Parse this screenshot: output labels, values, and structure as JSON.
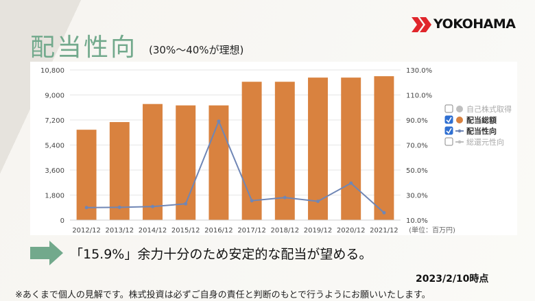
{
  "page": {
    "title": "配当性向",
    "subtitle": "(30%～40%が理想)",
    "logo_text": "YOKOHAMA",
    "conclusion": "「15.9%」余力十分のため安定的な配当が望める。",
    "date_stamp": "2023/2/10時点",
    "disclaimer": "※あくまで個人の見解です。株式投資は必ずご自身の責任と判断のもとで行うようにお願いいたします。",
    "colors": {
      "title": "#72a98c",
      "bar": "#d9823f",
      "line": "#6f86b5",
      "arrow": "#72a98c",
      "logo_red": "#e0262b"
    }
  },
  "chart_data": {
    "type": "bar",
    "categories": [
      "2012/12",
      "2013/12",
      "2014/12",
      "2015/12",
      "2016/12",
      "2017/12",
      "2018/12",
      "2019/12",
      "2020/12",
      "2021/12"
    ],
    "ylim_left": [
      0,
      10800
    ],
    "yticks_left": [
      "0",
      "1,800",
      "3,600",
      "5,400",
      "7,200",
      "9,000",
      "10,800"
    ],
    "ylim_right": [
      10.0,
      130.0
    ],
    "yticks_right": [
      "10.0%",
      "30.0%",
      "50.0%",
      "70.0%",
      "90.0%",
      "110.0%",
      "130.0%"
    ],
    "unit_label": "(単位：百万円)",
    "grid": true,
    "legend_position": "right",
    "series": [
      {
        "name": "配当総額",
        "kind": "bar",
        "axis": "left",
        "values": [
          6500,
          7050,
          8350,
          8250,
          8250,
          9950,
          9950,
          10250,
          10250,
          10350
        ]
      },
      {
        "name": "配当性向",
        "kind": "line",
        "axis": "right",
        "values": [
          20.0,
          20.2,
          20.8,
          23.0,
          89.0,
          25.5,
          28.0,
          25.0,
          39.5,
          15.9
        ]
      }
    ],
    "legend": [
      {
        "label": "自己株式取得",
        "checked": false,
        "color": "#bfbfbf"
      },
      {
        "label": "配当総額",
        "checked": true,
        "color": "#d9823f"
      },
      {
        "label": "配当性向",
        "checked": true,
        "color": "#6f86b5"
      },
      {
        "label": "総還元性向",
        "checked": false,
        "color": "#bfbfbf"
      }
    ]
  }
}
